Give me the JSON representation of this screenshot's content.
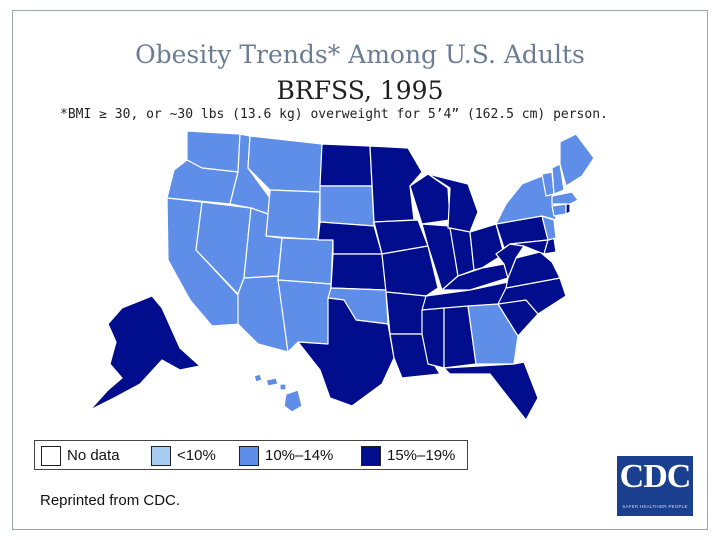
{
  "title": {
    "line1": "Obesity Trends* Among U.S. Adults",
    "line2": "BRFSS, 1995"
  },
  "footnote": "*BMI ≥ 30, or ~30 lbs (13.6 kg) overweight for 5’4” (162.5 cm) person.",
  "legend": [
    {
      "label": "No data",
      "color": "#ffffff"
    },
    {
      "label": "<10%",
      "color": "#a9cdf2"
    },
    {
      "label": "10%–14%",
      "color": "#5f8ee8"
    },
    {
      "label": "15%–19%",
      "color": "#000d8c"
    }
  ],
  "colors": {
    "lt10": "#a9cdf2",
    "r10_14": "#5f8ee8",
    "r15_19": "#000d8c",
    "state_border": "#ffffff"
  },
  "map_data": {
    "categories_by_state": {
      "10-14": [
        "WA",
        "OR",
        "CA",
        "NV",
        "ID",
        "MT",
        "WY",
        "UT",
        "AZ",
        "CO",
        "NM",
        "SD",
        "OK",
        "GA",
        "HI",
        "ME",
        "NH",
        "VT",
        "MA",
        "CT",
        "NY",
        "NJ"
      ],
      "15-19": [
        "AK",
        "TX",
        "ND",
        "NE",
        "KS",
        "MN",
        "IA",
        "MO",
        "AR",
        "LA",
        "WI",
        "IL",
        "MI",
        "IN",
        "OH",
        "KY",
        "TN",
        "MS",
        "AL",
        "FL",
        "SC",
        "NC",
        "VA",
        "WV",
        "PA",
        "MD",
        "DE",
        "RI"
      ]
    }
  },
  "credit": "Reprinted from CDC.",
  "logo": {
    "text": "CDC",
    "tagline": "SAFER·HEALTHIER·PEOPLE"
  }
}
